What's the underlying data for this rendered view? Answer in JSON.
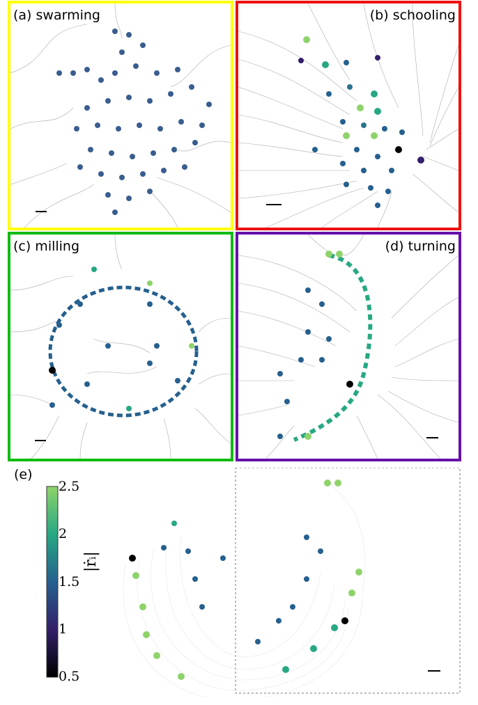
{
  "panels": {
    "a": {
      "label": "(a) swarming",
      "color": "#ffff00"
    },
    "b": {
      "label": "(b) schooling",
      "color": "#ee1111"
    },
    "c": {
      "label": "(c) milling",
      "color": "#11bb11"
    },
    "d": {
      "label": "(d) turning",
      "color": "#6611aa"
    },
    "e": {
      "label": "(e)"
    }
  },
  "colorbar": {
    "ticks": [
      "2.5",
      "2",
      "1.5",
      "1",
      "0.5"
    ],
    "axis_label": "|ṙᵢ|",
    "colors": [
      "#8ed36a",
      "#27a883",
      "#25608e",
      "#332069",
      "#000000"
    ]
  }
}
